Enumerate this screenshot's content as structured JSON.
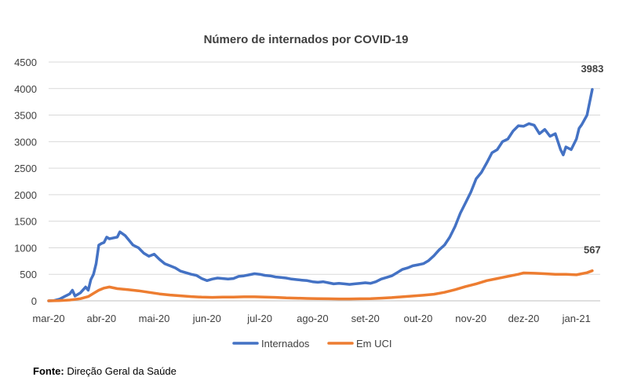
{
  "chart_data": {
    "type": "line",
    "title": "Número de internados por COVID-19",
    "xlabel": "",
    "ylabel": "",
    "ylim": [
      0,
      4500
    ],
    "yticks": [
      0,
      500,
      1000,
      1500,
      2000,
      2500,
      3000,
      3500,
      4000,
      4500
    ],
    "x_range": [
      0,
      10.45
    ],
    "xticks": [
      {
        "pos": 0,
        "label": "mar-20"
      },
      {
        "pos": 1,
        "label": "abr-20"
      },
      {
        "pos": 2,
        "label": "mai-20"
      },
      {
        "pos": 3,
        "label": "jun-20"
      },
      {
        "pos": 4,
        "label": "jul-20"
      },
      {
        "pos": 5,
        "label": "ago-20"
      },
      {
        "pos": 6,
        "label": "set-20"
      },
      {
        "pos": 7,
        "label": "out-20"
      },
      {
        "pos": 8,
        "label": "nov-20"
      },
      {
        "pos": 9,
        "label": "dez-20"
      },
      {
        "pos": 10,
        "label": "jan-21"
      }
    ],
    "grid": true,
    "legend_position": "bottom",
    "series": [
      {
        "name": "Internados",
        "color": "#4472C4",
        "end_label": "3983",
        "points": [
          [
            0,
            0
          ],
          [
            0.1,
            5
          ],
          [
            0.2,
            30
          ],
          [
            0.3,
            80
          ],
          [
            0.4,
            130
          ],
          [
            0.45,
            200
          ],
          [
            0.5,
            90
          ],
          [
            0.6,
            150
          ],
          [
            0.7,
            260
          ],
          [
            0.75,
            200
          ],
          [
            0.8,
            400
          ],
          [
            0.85,
            500
          ],
          [
            0.9,
            700
          ],
          [
            0.95,
            1050
          ],
          [
            1.0,
            1080
          ],
          [
            1.05,
            1100
          ],
          [
            1.1,
            1200
          ],
          [
            1.15,
            1170
          ],
          [
            1.2,
            1180
          ],
          [
            1.3,
            1200
          ],
          [
            1.35,
            1300
          ],
          [
            1.45,
            1230
          ],
          [
            1.5,
            1170
          ],
          [
            1.6,
            1050
          ],
          [
            1.7,
            1000
          ],
          [
            1.8,
            900
          ],
          [
            1.9,
            840
          ],
          [
            2.0,
            880
          ],
          [
            2.1,
            780
          ],
          [
            2.2,
            700
          ],
          [
            2.3,
            660
          ],
          [
            2.4,
            620
          ],
          [
            2.5,
            560
          ],
          [
            2.6,
            530
          ],
          [
            2.7,
            500
          ],
          [
            2.8,
            480
          ],
          [
            2.9,
            420
          ],
          [
            3.0,
            380
          ],
          [
            3.1,
            410
          ],
          [
            3.2,
            430
          ],
          [
            3.3,
            420
          ],
          [
            3.4,
            410
          ],
          [
            3.5,
            420
          ],
          [
            3.6,
            460
          ],
          [
            3.7,
            470
          ],
          [
            3.8,
            490
          ],
          [
            3.9,
            510
          ],
          [
            4.0,
            500
          ],
          [
            4.1,
            480
          ],
          [
            4.2,
            470
          ],
          [
            4.3,
            450
          ],
          [
            4.4,
            440
          ],
          [
            4.5,
            430
          ],
          [
            4.6,
            410
          ],
          [
            4.7,
            400
          ],
          [
            4.8,
            390
          ],
          [
            4.9,
            380
          ],
          [
            5.0,
            360
          ],
          [
            5.1,
            350
          ],
          [
            5.2,
            360
          ],
          [
            5.3,
            340
          ],
          [
            5.4,
            320
          ],
          [
            5.5,
            330
          ],
          [
            5.6,
            320
          ],
          [
            5.7,
            310
          ],
          [
            5.8,
            320
          ],
          [
            5.9,
            330
          ],
          [
            6.0,
            340
          ],
          [
            6.1,
            330
          ],
          [
            6.2,
            360
          ],
          [
            6.3,
            410
          ],
          [
            6.4,
            440
          ],
          [
            6.5,
            470
          ],
          [
            6.6,
            530
          ],
          [
            6.7,
            590
          ],
          [
            6.8,
            620
          ],
          [
            6.9,
            660
          ],
          [
            7.0,
            680
          ],
          [
            7.1,
            700
          ],
          [
            7.2,
            760
          ],
          [
            7.3,
            850
          ],
          [
            7.4,
            960
          ],
          [
            7.5,
            1050
          ],
          [
            7.6,
            1200
          ],
          [
            7.7,
            1400
          ],
          [
            7.8,
            1650
          ],
          [
            7.9,
            1850
          ],
          [
            8.0,
            2050
          ],
          [
            8.1,
            2300
          ],
          [
            8.2,
            2420
          ],
          [
            8.3,
            2600
          ],
          [
            8.4,
            2790
          ],
          [
            8.5,
            2850
          ],
          [
            8.6,
            3000
          ],
          [
            8.7,
            3050
          ],
          [
            8.8,
            3200
          ],
          [
            8.9,
            3300
          ],
          [
            9.0,
            3290
          ],
          [
            9.1,
            3340
          ],
          [
            9.2,
            3310
          ],
          [
            9.3,
            3150
          ],
          [
            9.4,
            3230
          ],
          [
            9.5,
            3100
          ],
          [
            9.6,
            3150
          ],
          [
            9.7,
            2850
          ],
          [
            9.75,
            2750
          ],
          [
            9.8,
            2900
          ],
          [
            9.9,
            2850
          ],
          [
            10.0,
            3050
          ],
          [
            10.05,
            3250
          ],
          [
            10.1,
            3320
          ],
          [
            10.2,
            3500
          ],
          [
            10.3,
            3983
          ]
        ]
      },
      {
        "name": "Em UCI",
        "color": "#ED7D31",
        "end_label": "567",
        "points": [
          [
            0,
            0
          ],
          [
            0.2,
            5
          ],
          [
            0.4,
            15
          ],
          [
            0.6,
            40
          ],
          [
            0.75,
            80
          ],
          [
            0.85,
            140
          ],
          [
            0.95,
            200
          ],
          [
            1.05,
            240
          ],
          [
            1.15,
            260
          ],
          [
            1.3,
            230
          ],
          [
            1.5,
            210
          ],
          [
            1.7,
            190
          ],
          [
            1.9,
            160
          ],
          [
            2.1,
            130
          ],
          [
            2.3,
            110
          ],
          [
            2.5,
            95
          ],
          [
            2.7,
            80
          ],
          [
            2.9,
            70
          ],
          [
            3.1,
            65
          ],
          [
            3.3,
            70
          ],
          [
            3.5,
            70
          ],
          [
            3.7,
            75
          ],
          [
            3.9,
            75
          ],
          [
            4.1,
            70
          ],
          [
            4.3,
            65
          ],
          [
            4.5,
            55
          ],
          [
            4.7,
            50
          ],
          [
            4.9,
            45
          ],
          [
            5.1,
            40
          ],
          [
            5.3,
            38
          ],
          [
            5.5,
            36
          ],
          [
            5.7,
            35
          ],
          [
            5.9,
            38
          ],
          [
            6.1,
            42
          ],
          [
            6.3,
            50
          ],
          [
            6.5,
            60
          ],
          [
            6.7,
            75
          ],
          [
            6.9,
            90
          ],
          [
            7.1,
            105
          ],
          [
            7.3,
            125
          ],
          [
            7.5,
            160
          ],
          [
            7.7,
            210
          ],
          [
            7.9,
            270
          ],
          [
            8.1,
            320
          ],
          [
            8.3,
            380
          ],
          [
            8.5,
            420
          ],
          [
            8.7,
            460
          ],
          [
            8.9,
            500
          ],
          [
            9.0,
            525
          ],
          [
            9.2,
            520
          ],
          [
            9.4,
            510
          ],
          [
            9.6,
            500
          ],
          [
            9.8,
            500
          ],
          [
            10.0,
            490
          ],
          [
            10.1,
            510
          ],
          [
            10.2,
            530
          ],
          [
            10.3,
            567
          ]
        ]
      }
    ]
  },
  "source": {
    "label": "Fonte:",
    "text": " Direção Geral da Saúde"
  }
}
